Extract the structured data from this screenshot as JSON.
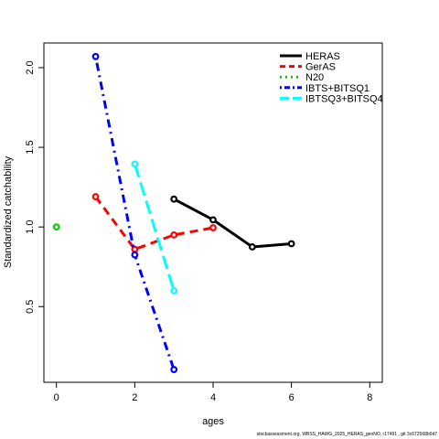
{
  "chart_data": {
    "type": "line",
    "xlabel": "ages",
    "ylabel": "Standardized catchability",
    "xlim": [
      -0.32,
      8.32
    ],
    "ylim": [
      0.025,
      2.155
    ],
    "xticks": [
      0,
      2,
      4,
      6,
      8
    ],
    "yticks": [
      0.5,
      1.0,
      1.5,
      2.0
    ],
    "ytick_labels": [
      "0.5",
      "1.0",
      "1.5",
      "2.0"
    ],
    "grid": false,
    "legend_position": "top-right",
    "series": [
      {
        "name": "HERAS",
        "color": "#000000",
        "dash": "solid",
        "x": [
          3,
          4,
          5,
          6
        ],
        "y": [
          1.175,
          1.045,
          0.875,
          0.895
        ]
      },
      {
        "name": "GerAS",
        "color": "#ff0000",
        "dash": "dashed",
        "x": [
          1,
          2,
          3,
          4
        ],
        "y": [
          1.19,
          0.86,
          0.95,
          0.995
        ]
      },
      {
        "name": "N20",
        "color": "#00cd00",
        "dash": "dotted",
        "x": [
          0
        ],
        "y": [
          1.0
        ]
      },
      {
        "name": "IBTS+BITSQ1",
        "color": "#0000ff",
        "dash": "dotdash",
        "x": [
          1,
          2,
          3
        ],
        "y": [
          2.07,
          0.825,
          0.105
        ]
      },
      {
        "name": "IBTSQ3+BITSQ4",
        "color": "#00ffff",
        "dash": "longdash",
        "x": [
          2,
          3
        ],
        "y": [
          1.395,
          0.6
        ]
      }
    ]
  },
  "footer_text": "stockassessment.org, WBSS_HAWG_2025_HERAS_genNO, r17491 , git 3c672568b0d7"
}
